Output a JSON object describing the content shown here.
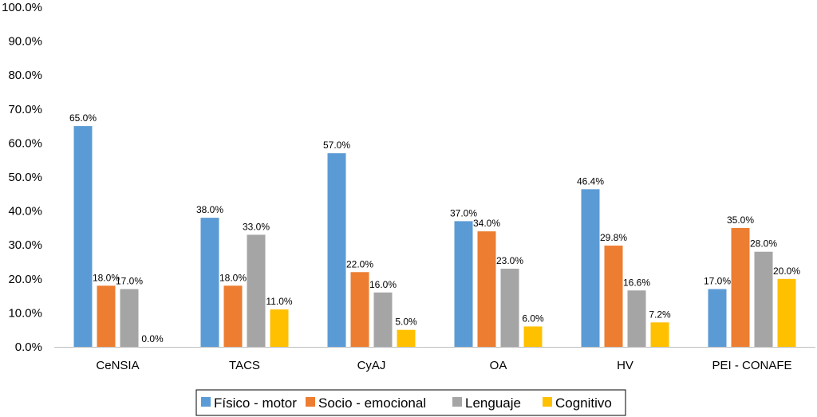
{
  "chart_data": {
    "type": "bar",
    "categories": [
      "CeNSIA",
      "TACS",
      "CyAJ",
      "OA",
      "HV",
      "PEI - CONAFE"
    ],
    "series": [
      {
        "name": "Físico - motor",
        "values": [
          65.0,
          38.0,
          57.0,
          37.0,
          46.4,
          17.0
        ],
        "labels": [
          "65.0%",
          "38.0%",
          "57.0%",
          "37.0%",
          "46.4%",
          "17.0%"
        ],
        "color": "#5B9BD5"
      },
      {
        "name": "Socio - emocional",
        "values": [
          18.0,
          18.0,
          22.0,
          34.0,
          29.8,
          35.0
        ],
        "labels": [
          "18.0%",
          "18.0%",
          "22.0%",
          "34.0%",
          "29.8%",
          "35.0%"
        ],
        "color": "#ED7D31"
      },
      {
        "name": "Lenguaje",
        "values": [
          17.0,
          33.0,
          16.0,
          23.0,
          16.6,
          28.0
        ],
        "labels": [
          "17.0%",
          "33.0%",
          "16.0%",
          "23.0%",
          "16.6%",
          "28.0%"
        ],
        "color": "#A5A5A5"
      },
      {
        "name": "Cognitivo",
        "values": [
          0.0,
          11.0,
          5.0,
          6.0,
          7.2,
          20.0
        ],
        "labels": [
          "0.0%",
          "11.0%",
          "5.0%",
          "6.0%",
          "7.2%",
          "20.0%"
        ],
        "color": "#FFC000"
      }
    ],
    "yticks": [
      "0.0%",
      "10.0%",
      "20.0%",
      "30.0%",
      "40.0%",
      "50.0%",
      "60.0%",
      "70.0%",
      "80.0%",
      "90.0%",
      "100.0%"
    ],
    "ylim": [
      0,
      100
    ],
    "grid": false,
    "legend_position": "bottom"
  }
}
